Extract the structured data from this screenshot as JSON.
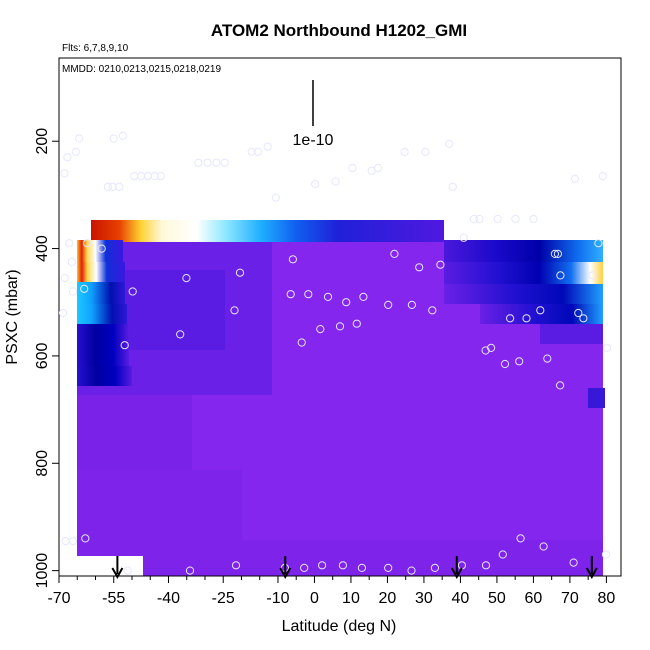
{
  "chart_data": {
    "type": "heatmap",
    "title": "ATOM2 Northbound H1202_GMI",
    "subtitle_flights": "Flts: 6,7,8,9,10",
    "subtitle_dates": "MMDD: 0210,0213,0215,0218,0219",
    "xlabel": "Latitude (deg N)",
    "ylabel": "PSXC (mbar)",
    "xlim": [
      -70,
      84
    ],
    "ylim": [
      1010,
      45
    ],
    "x_ticks": [
      -70,
      -55,
      -40,
      -25,
      -10,
      0,
      10,
      20,
      30,
      40,
      50,
      60,
      70,
      80
    ],
    "x_tick_labels": [
      "-70",
      "-55",
      "-40",
      "-25",
      "-10",
      "0",
      "10",
      "20",
      "30",
      "40",
      "50",
      "60",
      "70",
      "80"
    ],
    "y_ticks": [
      200,
      400,
      600,
      800,
      1000
    ],
    "y_tick_labels": [
      "200",
      "400",
      "600",
      "800",
      "1000"
    ],
    "scale_label": "1e-10",
    "colors": {
      "background": "#8426EE",
      "low": "#7C22E8",
      "mid_blue": "#0A00C8",
      "cyan": "#18C8FF",
      "yellow": "#FFD840",
      "red": "#E01000",
      "marker": "#E6E6FF"
    },
    "arrow_latitudes": [
      -54,
      -8,
      39,
      76
    ],
    "observations": [
      [
        -65.4,
        220
      ],
      [
        -67.7,
        230
      ],
      [
        -68.5,
        260
      ],
      [
        -67.2,
        390
      ],
      [
        -66.5,
        425
      ],
      [
        -68.4,
        455
      ],
      [
        -66.2,
        480
      ],
      [
        -63.1,
        475
      ],
      [
        -68.9,
        520
      ],
      [
        -62.3,
        390
      ],
      [
        -58.3,
        400
      ],
      [
        -56.6,
        285
      ],
      [
        -55.3,
        285
      ],
      [
        -53.5,
        285
      ],
      [
        -49.4,
        265
      ],
      [
        -47.5,
        265
      ],
      [
        -45.7,
        265
      ],
      [
        -43.8,
        265
      ],
      [
        -42.1,
        265
      ],
      [
        -55.0,
        195
      ],
      [
        -52.5,
        190
      ],
      [
        -64.5,
        195
      ],
      [
        -52.0,
        580
      ],
      [
        -49.8,
        480
      ],
      [
        -36.8,
        560
      ],
      [
        -35.1,
        455
      ],
      [
        -31.8,
        240
      ],
      [
        -29.3,
        240
      ],
      [
        -26.9,
        240
      ],
      [
        -24.6,
        240
      ],
      [
        -21.9,
        515
      ],
      [
        -20.4,
        445
      ],
      [
        -17.2,
        220
      ],
      [
        -15.5,
        220
      ],
      [
        -12.8,
        210
      ],
      [
        -10.6,
        305
      ],
      [
        -6.5,
        485
      ],
      [
        -5.9,
        420
      ],
      [
        -3.5,
        575
      ],
      [
        -1.7,
        485
      ],
      [
        0.2,
        280
      ],
      [
        1.6,
        550
      ],
      [
        3.7,
        490
      ],
      [
        5.8,
        275
      ],
      [
        7.0,
        545
      ],
      [
        8.7,
        500
      ],
      [
        10.4,
        250
      ],
      [
        11.6,
        540
      ],
      [
        13.4,
        490
      ],
      [
        15.7,
        255
      ],
      [
        17.4,
        250
      ],
      [
        20.2,
        505
      ],
      [
        21.9,
        410
      ],
      [
        24.7,
        220
      ],
      [
        26.7,
        505
      ],
      [
        28.7,
        435
      ],
      [
        30.4,
        220
      ],
      [
        32.3,
        515
      ],
      [
        34.5,
        430
      ],
      [
        36.9,
        205
      ],
      [
        37.9,
        285
      ],
      [
        40.9,
        380
      ],
      [
        43.7,
        345
      ],
      [
        45.2,
        345
      ],
      [
        46.9,
        590
      ],
      [
        48.4,
        585
      ],
      [
        50.2,
        345
      ],
      [
        52.2,
        615
      ],
      [
        53.6,
        530
      ],
      [
        55.1,
        345
      ],
      [
        56.1,
        610
      ],
      [
        58.1,
        530
      ],
      [
        60.0,
        345
      ],
      [
        61.9,
        515
      ],
      [
        63.8,
        605
      ],
      [
        65.9,
        410
      ],
      [
        66.7,
        410
      ],
      [
        67.4,
        450
      ],
      [
        67.3,
        655
      ],
      [
        71.4,
        270
      ],
      [
        72.3,
        520
      ],
      [
        73.7,
        530
      ],
      [
        76.2,
        450
      ],
      [
        77.8,
        390
      ],
      [
        79.0,
        265
      ],
      [
        80.2,
        585
      ],
      [
        -68.2,
        945
      ],
      [
        -66.2,
        945
      ],
      [
        -62.8,
        940
      ],
      [
        -51.2,
        1000
      ],
      [
        -34.1,
        1000
      ],
      [
        -21.5,
        990
      ],
      [
        -8.1,
        995
      ],
      [
        -2.8,
        995
      ],
      [
        2.1,
        990
      ],
      [
        7.8,
        990
      ],
      [
        13.0,
        995
      ],
      [
        20.2,
        995
      ],
      [
        26.6,
        1000
      ],
      [
        33.0,
        995
      ],
      [
        40.4,
        990
      ],
      [
        47.0,
        990
      ],
      [
        51.6,
        970
      ],
      [
        56.5,
        940
      ],
      [
        62.8,
        955
      ],
      [
        71.0,
        985
      ],
      [
        79.9,
        970
      ]
    ]
  }
}
